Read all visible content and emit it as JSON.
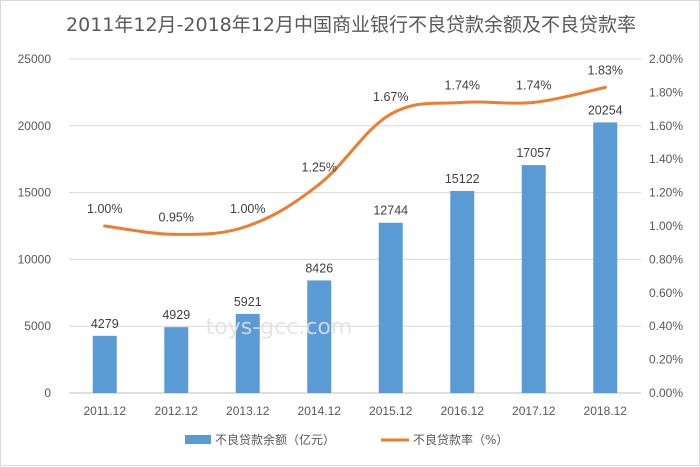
{
  "chart_data": {
    "type": "bar+line",
    "title": "2011年12月-2018年12月中国商业银行不良贷款余额及不良贷款率",
    "categories": [
      "2011.12",
      "2012.12",
      "2013.12",
      "2014.12",
      "2015.12",
      "2016.12",
      "2017.12",
      "2018.12"
    ],
    "series": [
      {
        "name": "不良贷款余额（亿元）",
        "type": "bar",
        "axis": "left",
        "values": [
          4279,
          4929,
          5921,
          8426,
          12744,
          15122,
          17057,
          20254
        ],
        "labels": [
          "4279",
          "4929",
          "5921",
          "8426",
          "12744",
          "15122",
          "17057",
          "20254"
        ],
        "color": "#5b9bd5"
      },
      {
        "name": "不良贷款率（%）",
        "type": "line",
        "axis": "right",
        "values": [
          1.0,
          0.95,
          1.0,
          1.25,
          1.67,
          1.74,
          1.74,
          1.83
        ],
        "labels": [
          "1.00%",
          "0.95%",
          "1.00%",
          "1.25%",
          "1.67%",
          "1.74%",
          "1.74%",
          "1.83%"
        ],
        "color": "#ed7d31"
      }
    ],
    "y_left": {
      "min": 0,
      "max": 25000,
      "ticks": [
        0,
        5000,
        10000,
        15000,
        20000,
        25000
      ],
      "tick_labels": [
        "0",
        "5000",
        "10000",
        "15000",
        "20000",
        "25000"
      ]
    },
    "y_right": {
      "min": 0,
      "max": 2.0,
      "ticks": [
        0,
        0.2,
        0.4,
        0.6,
        0.8,
        1.0,
        1.2,
        1.4,
        1.6,
        1.8,
        2.0
      ],
      "tick_labels": [
        "0.00%",
        "0.20%",
        "0.40%",
        "0.60%",
        "0.80%",
        "1.00%",
        "1.20%",
        "1.40%",
        "1.60%",
        "1.80%",
        "2.00%"
      ]
    },
    "grid": true,
    "legend_position": "bottom",
    "watermark": "toys-gcc.com"
  }
}
